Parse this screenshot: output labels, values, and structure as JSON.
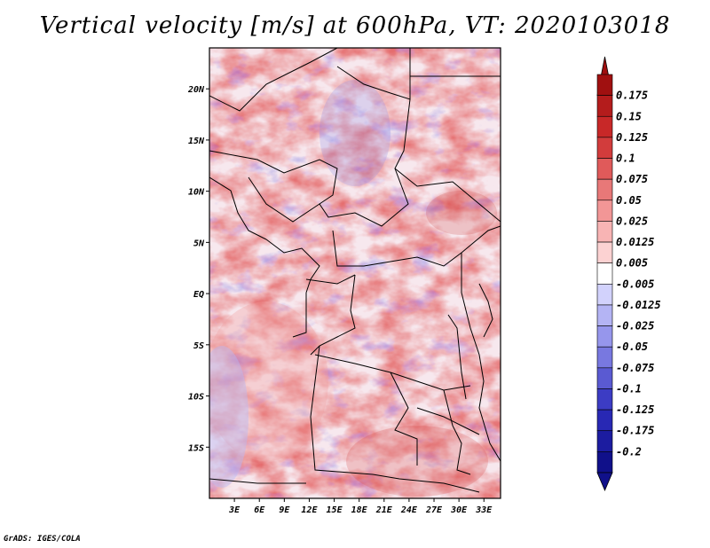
{
  "title": "Vertical velocity [m/s] at 600hPa, VT: 2020103018",
  "credit": "GrADS: IGES/COLA",
  "map": {
    "lon_range": [
      0,
      35
    ],
    "lat_range": [
      -20,
      24
    ],
    "lat_ticks": [
      {
        "value": 20,
        "label": "20N"
      },
      {
        "value": 15,
        "label": "15N"
      },
      {
        "value": 10,
        "label": "10N"
      },
      {
        "value": 5,
        "label": "5N"
      },
      {
        "value": 0,
        "label": "EQ"
      },
      {
        "value": -5,
        "label": "5S"
      },
      {
        "value": -10,
        "label": "10S"
      },
      {
        "value": -15,
        "label": "15S"
      }
    ],
    "lon_ticks": [
      {
        "value": 3,
        "label": "3E"
      },
      {
        "value": 6,
        "label": "6E"
      },
      {
        "value": 9,
        "label": "9E"
      },
      {
        "value": 12,
        "label": "12E"
      },
      {
        "value": 15,
        "label": "15E"
      },
      {
        "value": 18,
        "label": "18E"
      },
      {
        "value": 21,
        "label": "21E"
      },
      {
        "value": 24,
        "label": "24E"
      },
      {
        "value": 27,
        "label": "27E"
      },
      {
        "value": 30,
        "label": "30E"
      },
      {
        "value": 33,
        "label": "33E"
      }
    ]
  },
  "colorbar": {
    "levels": [
      "0.175",
      "0.15",
      "0.125",
      "0.1",
      "0.075",
      "0.05",
      "0.025",
      "0.0125",
      "0.005",
      "-0.005",
      "-0.0125",
      "-0.025",
      "-0.05",
      "-0.075",
      "-0.1",
      "-0.125",
      "-0.175",
      "-0.2"
    ],
    "colors": [
      "#a01010",
      "#b41c1c",
      "#c82828",
      "#d23c3c",
      "#e05a5a",
      "#e87878",
      "#f29696",
      "#f8b4b4",
      "#fcd2d2",
      "#ffffff",
      "#d2d2fc",
      "#b4b4f4",
      "#9696ec",
      "#7878e0",
      "#5a5ad2",
      "#3c3cc4",
      "#2828b4",
      "#1c1ca0",
      "#10108a"
    ]
  }
}
